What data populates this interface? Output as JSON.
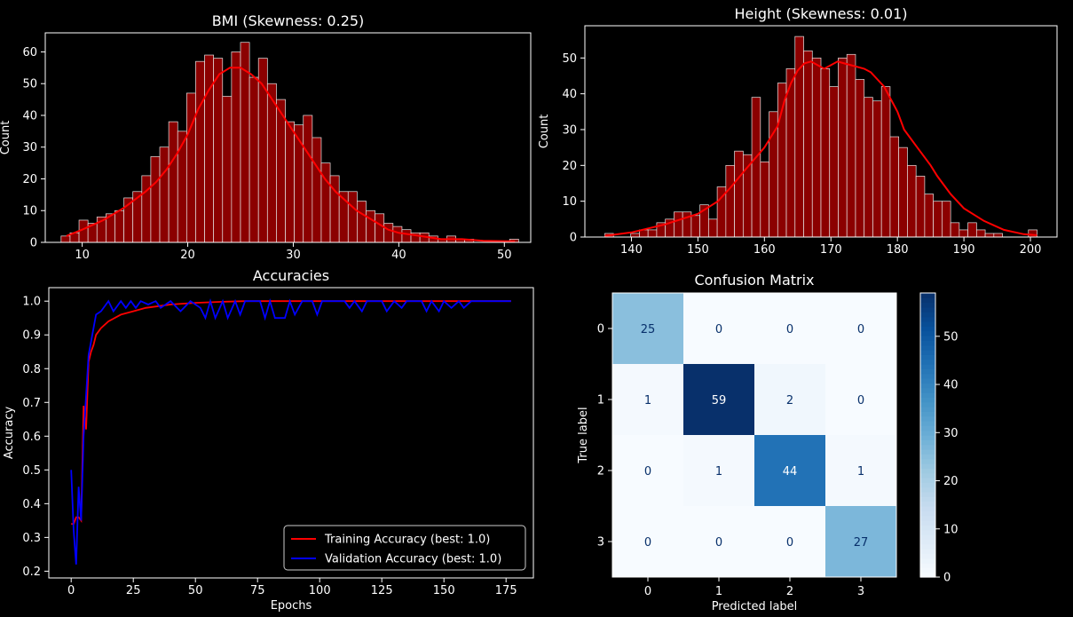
{
  "chart_data": [
    {
      "type": "bar",
      "title": "BMI (Skewness: 0.25)",
      "xlabel": "",
      "ylabel": "Count",
      "xlim": [
        6.5,
        52.5
      ],
      "ylim": [
        0,
        66
      ],
      "x_ticks": [
        10,
        20,
        30,
        40,
        50
      ],
      "y_ticks": [
        0,
        10,
        20,
        30,
        40,
        50,
        60
      ],
      "bin_start": 8.0,
      "bin_width": 0.85,
      "counts": [
        2,
        3,
        7,
        6,
        8,
        9,
        10,
        14,
        16,
        21,
        27,
        30,
        38,
        35,
        47,
        57,
        59,
        58,
        46,
        60,
        63,
        52,
        58,
        50,
        45,
        38,
        37,
        40,
        33,
        25,
        21,
        16,
        16,
        13,
        10,
        9,
        6,
        5,
        4,
        3,
        3,
        2,
        1,
        2,
        1,
        1,
        0,
        0,
        0,
        0,
        1
      ],
      "kde": [
        [
          8.5,
          2
        ],
        [
          10,
          4
        ],
        [
          12,
          7
        ],
        [
          14,
          11
        ],
        [
          16,
          16
        ],
        [
          17,
          19
        ],
        [
          18,
          23
        ],
        [
          19,
          28
        ],
        [
          20,
          34
        ],
        [
          21,
          42
        ],
        [
          22,
          48
        ],
        [
          23,
          53
        ],
        [
          24,
          55
        ],
        [
          25,
          55
        ],
        [
          26,
          53
        ],
        [
          27,
          50
        ],
        [
          28,
          45
        ],
        [
          29,
          40
        ],
        [
          30,
          35
        ],
        [
          31,
          30
        ],
        [
          32,
          25
        ],
        [
          33,
          20
        ],
        [
          34,
          16
        ],
        [
          35,
          13
        ],
        [
          36,
          10
        ],
        [
          37,
          8
        ],
        [
          38,
          6
        ],
        [
          39,
          4
        ],
        [
          40,
          3
        ],
        [
          42,
          2
        ],
        [
          44,
          1
        ],
        [
          46,
          1
        ],
        [
          48,
          0.5
        ],
        [
          51,
          0.3
        ]
      ],
      "bar_color": "#8b0000",
      "kde_color": "#ff0000"
    },
    {
      "type": "bar",
      "title": "Height (Skewness: 0.01)",
      "xlabel": "",
      "ylabel": "Count",
      "xlim": [
        133,
        204
      ],
      "ylim": [
        0,
        59
      ],
      "x_ticks": [
        140,
        150,
        160,
        170,
        180,
        190,
        200
      ],
      "y_ticks": [
        0,
        10,
        20,
        30,
        40,
        50
      ],
      "bin_start": 136.0,
      "bin_width": 1.3,
      "counts": [
        1,
        0,
        0,
        1,
        2,
        2,
        4,
        5,
        7,
        7,
        6,
        9,
        5,
        14,
        20,
        24,
        23,
        39,
        21,
        35,
        43,
        47,
        56,
        52,
        50,
        47,
        42,
        50,
        51,
        44,
        39,
        38,
        42,
        28,
        25,
        20,
        17,
        12,
        10,
        10,
        4,
        2,
        4,
        2,
        1,
        1,
        0,
        0,
        0,
        2
      ],
      "kde": [
        [
          136,
          0.3
        ],
        [
          140,
          1.3
        ],
        [
          145,
          3.5
        ],
        [
          150,
          6.5
        ],
        [
          153,
          10
        ],
        [
          155,
          14
        ],
        [
          157,
          18.5
        ],
        [
          160,
          25
        ],
        [
          162,
          31
        ],
        [
          163,
          38
        ],
        [
          164,
          43
        ],
        [
          165,
          46.5
        ],
        [
          166,
          48.5
        ],
        [
          167,
          49
        ],
        [
          168,
          48
        ],
        [
          169,
          47
        ],
        [
          170,
          48
        ],
        [
          171,
          49
        ],
        [
          172,
          48.5
        ],
        [
          173,
          48
        ],
        [
          175,
          47
        ],
        [
          176,
          46
        ],
        [
          177,
          44
        ],
        [
          178,
          42
        ],
        [
          180,
          35
        ],
        [
          181,
          30
        ],
        [
          183,
          25
        ],
        [
          185,
          20
        ],
        [
          186,
          17
        ],
        [
          188,
          12
        ],
        [
          190,
          8
        ],
        [
          193,
          4.5
        ],
        [
          196,
          2
        ],
        [
          199,
          0.8
        ],
        [
          201,
          0.5
        ]
      ],
      "bar_color": "#8b0000",
      "kde_color": "#ff0000"
    },
    {
      "type": "line",
      "title": "Accuracies",
      "xlabel": "Epochs",
      "ylabel": "Accuracy",
      "xlim": [
        -9,
        186
      ],
      "ylim": [
        0.18,
        1.04
      ],
      "x_ticks": [
        0,
        25,
        50,
        75,
        100,
        125,
        150,
        175
      ],
      "y_ticks": [
        0.2,
        0.3,
        0.4,
        0.5,
        0.6,
        0.7,
        0.8,
        0.9,
        1.0
      ],
      "legend_position": "lower-right",
      "series": [
        {
          "name": "Training Accuracy (best: 1.0)",
          "color": "#ff0000",
          "points": [
            [
              0,
              0.34
            ],
            [
              1,
              0.34
            ],
            [
              2,
              0.36
            ],
            [
              3,
              0.36
            ],
            [
              4,
              0.35
            ],
            [
              5,
              0.69
            ],
            [
              6,
              0.62
            ],
            [
              7,
              0.82
            ],
            [
              8,
              0.85
            ],
            [
              9,
              0.87
            ],
            [
              10,
              0.9
            ],
            [
              12,
              0.92
            ],
            [
              15,
              0.94
            ],
            [
              20,
              0.96
            ],
            [
              25,
              0.97
            ],
            [
              30,
              0.98
            ],
            [
              40,
              0.99
            ],
            [
              50,
              0.995
            ],
            [
              60,
              0.998
            ],
            [
              70,
              1.0
            ],
            [
              177,
              1.0
            ]
          ]
        },
        {
          "name": "Validation Accuracy (best: 1.0)",
          "color": "#0000ff",
          "points": [
            [
              0,
              0.5
            ],
            [
              1,
              0.32
            ],
            [
              2,
              0.22
            ],
            [
              3,
              0.45
            ],
            [
              4,
              0.35
            ],
            [
              5,
              0.6
            ],
            [
              6,
              0.72
            ],
            [
              7,
              0.84
            ],
            [
              8,
              0.88
            ],
            [
              9,
              0.92
            ],
            [
              10,
              0.96
            ],
            [
              12,
              0.97
            ],
            [
              15,
              1.0
            ],
            [
              17,
              0.97
            ],
            [
              20,
              1.0
            ],
            [
              22,
              0.98
            ],
            [
              24,
              1.0
            ],
            [
              26,
              0.98
            ],
            [
              28,
              1.0
            ],
            [
              31,
              0.99
            ],
            [
              34,
              1.0
            ],
            [
              36,
              0.98
            ],
            [
              40,
              1.0
            ],
            [
              44,
              0.97
            ],
            [
              48,
              1.0
            ],
            [
              52,
              0.98
            ],
            [
              54,
              0.95
            ],
            [
              56,
              1.0
            ],
            [
              58,
              0.95
            ],
            [
              61,
              1.0
            ],
            [
              63,
              0.95
            ],
            [
              66,
              1.0
            ],
            [
              68,
              0.96
            ],
            [
              70,
              1.0
            ],
            [
              76,
              1.0
            ],
            [
              78,
              0.95
            ],
            [
              80,
              1.0
            ],
            [
              82,
              0.95
            ],
            [
              86,
              0.95
            ],
            [
              88,
              1.0
            ],
            [
              90,
              0.96
            ],
            [
              93,
              1.0
            ],
            [
              97,
              1.0
            ],
            [
              99,
              0.96
            ],
            [
              101,
              1.0
            ],
            [
              110,
              1.0
            ],
            [
              112,
              0.98
            ],
            [
              114,
              1.0
            ],
            [
              117,
              0.97
            ],
            [
              119,
              1.0
            ],
            [
              125,
              1.0
            ],
            [
              127,
              0.97
            ],
            [
              130,
              1.0
            ],
            [
              133,
              0.98
            ],
            [
              135,
              1.0
            ],
            [
              141,
              1.0
            ],
            [
              143,
              0.97
            ],
            [
              145,
              1.0
            ],
            [
              148,
              0.97
            ],
            [
              150,
              1.0
            ],
            [
              153,
              0.98
            ],
            [
              156,
              1.0
            ],
            [
              158,
              0.98
            ],
            [
              161,
              1.0
            ],
            [
              177,
              1.0
            ]
          ]
        }
      ]
    },
    {
      "type": "heatmap",
      "title": "Confusion Matrix",
      "xlabel": "Predicted label",
      "ylabel": "True label",
      "labels": [
        "0",
        "1",
        "2",
        "3"
      ],
      "matrix": [
        [
          25,
          0,
          0,
          0
        ],
        [
          1,
          59,
          2,
          0
        ],
        [
          0,
          1,
          44,
          1
        ],
        [
          0,
          0,
          0,
          27
        ]
      ],
      "colorbar_ticks": [
        0,
        10,
        20,
        30,
        40,
        50
      ],
      "vmin": 0,
      "vmax": 59,
      "colormap": "Blues"
    }
  ]
}
